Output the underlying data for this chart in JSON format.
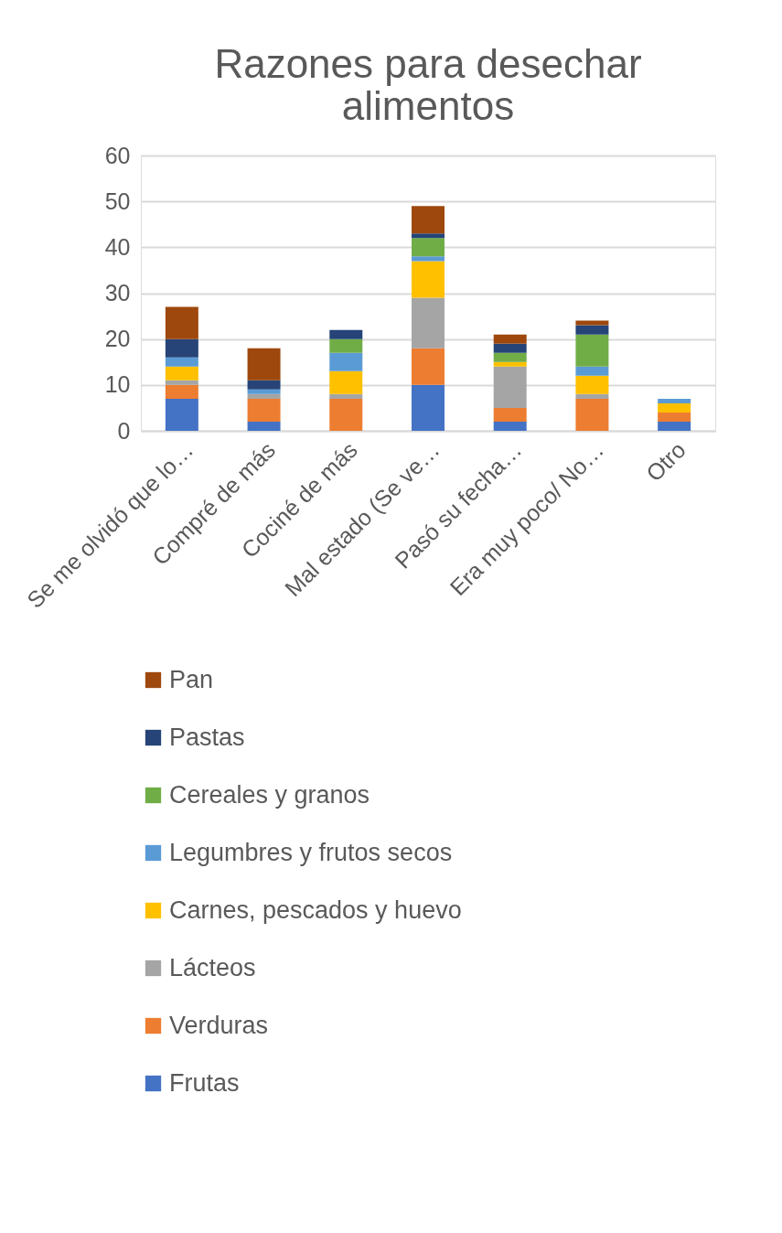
{
  "chart_data": {
    "type": "bar",
    "stacked": true,
    "title": "Razones para desechar alimentos",
    "categories": [
      "Se me olvidó que lo…",
      "Compré de más",
      "Cociné de más",
      "Mal estado (Se ve…",
      "Pasó su fecha…",
      "Era muy poco/ No…",
      "Otro"
    ],
    "series": [
      {
        "name": "Frutas",
        "color": "#4472c4",
        "values": [
          7,
          2,
          0,
          10,
          2,
          0,
          2
        ]
      },
      {
        "name": "Verduras",
        "color": "#ed7d31",
        "values": [
          3,
          5,
          7,
          8,
          3,
          7,
          2
        ]
      },
      {
        "name": "Lácteos",
        "color": "#a5a5a5",
        "values": [
          1,
          1,
          1,
          11,
          9,
          1,
          0
        ]
      },
      {
        "name": "Carnes, pescados y huevo",
        "color": "#ffc000",
        "values": [
          3,
          0,
          5,
          8,
          1,
          4,
          2
        ]
      },
      {
        "name": "Legumbres y frutos secos",
        "color": "#5b9bd5",
        "values": [
          2,
          1,
          4,
          1,
          0,
          2,
          1
        ]
      },
      {
        "name": "Cereales y granos",
        "color": "#70ad47",
        "values": [
          0,
          0,
          3,
          4,
          2,
          7,
          0
        ]
      },
      {
        "name": "Pastas",
        "color": "#264478",
        "values": [
          4,
          2,
          2,
          1,
          2,
          2,
          0
        ]
      },
      {
        "name": "Pan",
        "color": "#9e480e",
        "values": [
          7,
          7,
          0,
          6,
          2,
          1,
          0
        ]
      }
    ],
    "ylim": [
      0,
      60
    ],
    "yticks": [
      0,
      10,
      20,
      30,
      40,
      50,
      60
    ],
    "grid": "y",
    "legend": "bottom"
  }
}
